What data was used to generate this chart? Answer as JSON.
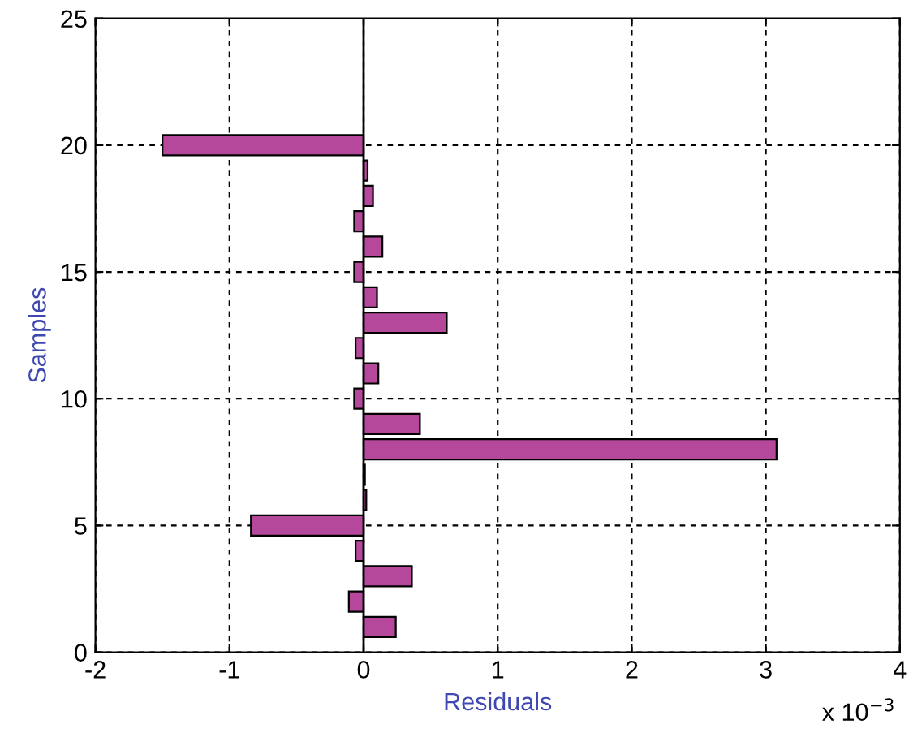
{
  "chart_data": {
    "type": "bar",
    "orientation": "horizontal",
    "xlabel": "Residuals",
    "ylabel": "Samples",
    "x": [
      1,
      2,
      3,
      4,
      5,
      6,
      7,
      8,
      9,
      10,
      11,
      12,
      13,
      14,
      15,
      16,
      17,
      18,
      19,
      20
    ],
    "values": [
      0.24,
      -0.11,
      0.36,
      -0.06,
      -0.84,
      0.02,
      0.01,
      3.08,
      0.42,
      -0.07,
      0.11,
      -0.06,
      0.62,
      0.1,
      -0.07,
      0.14,
      -0.07,
      0.07,
      0.03,
      -1.5
    ],
    "color": "#b5489b",
    "xlim": [
      -2,
      4
    ],
    "xticks": [
      -2,
      -1,
      0,
      1,
      2,
      3,
      4
    ],
    "ylim": [
      0,
      25
    ],
    "yticks": [
      0,
      5,
      10,
      15,
      20,
      25
    ],
    "grid": true,
    "ref_lines": [
      {
        "axis": "x",
        "value": 0,
        "color": "#000000",
        "line_style": "solid"
      }
    ],
    "annotations": [
      "x 10$^{−3}$"
    ]
  }
}
